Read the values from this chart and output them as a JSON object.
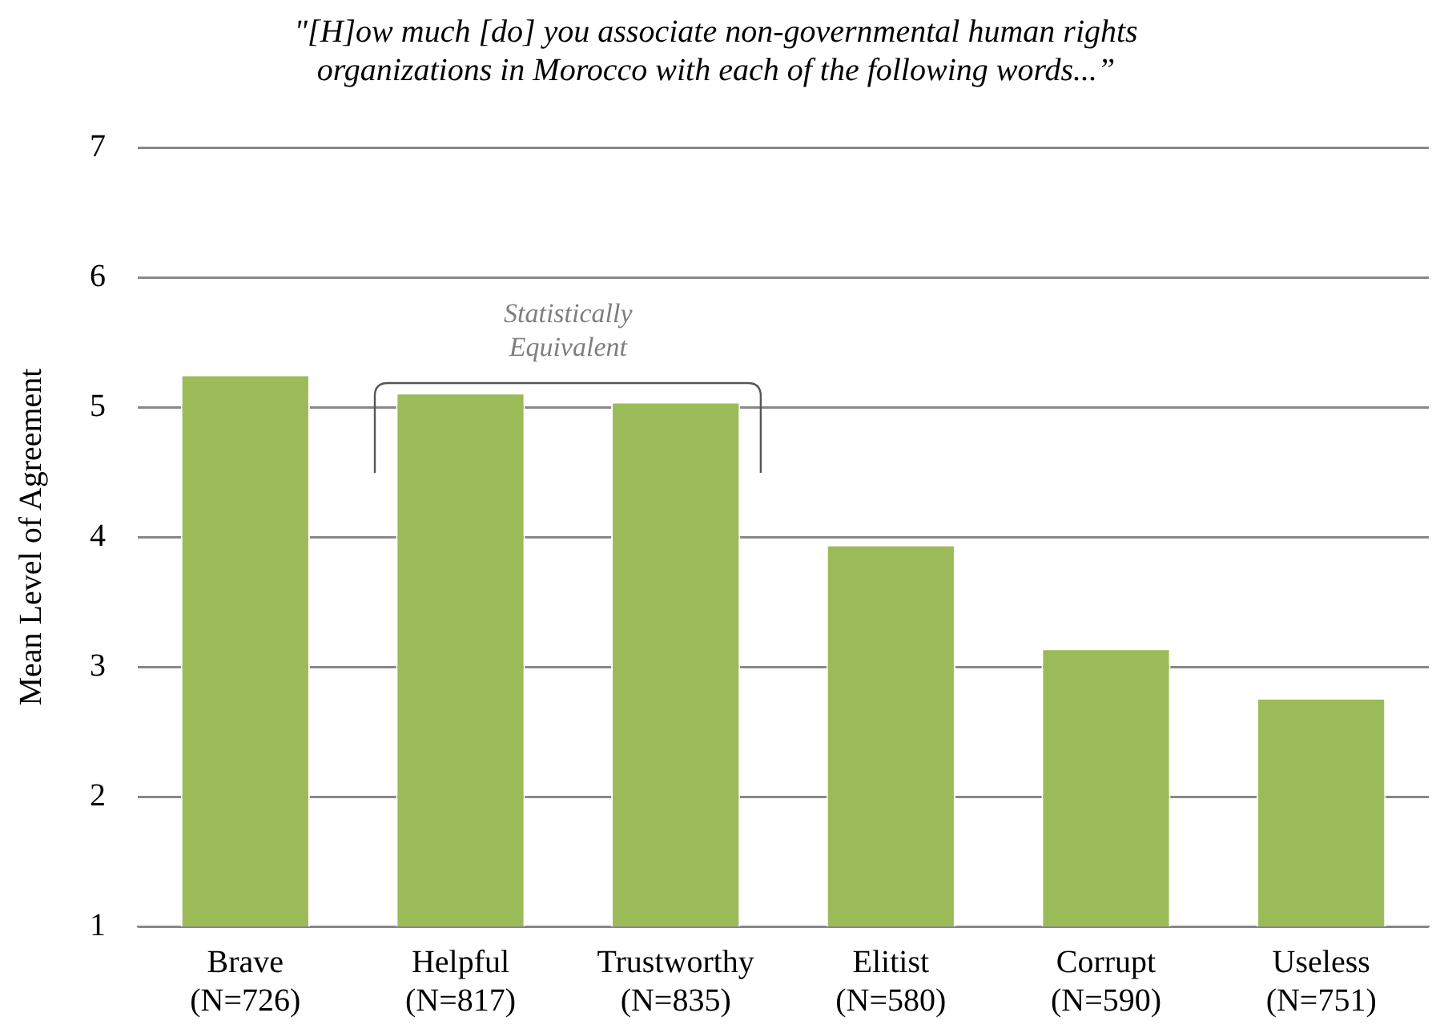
{
  "chart_data": {
    "type": "bar",
    "title": "\"[H]ow much [do] you associate non-governmental human rights organizations in Morocco with each of the following words...”",
    "ylabel": "Mean Level of Agreement",
    "categories": [
      "Brave (N=726)",
      "Helpful (N=817)",
      "Trustworthy (N=835)",
      "Elitist (N=580)",
      "Corrupt (N=590)",
      "Useless (N=751)"
    ],
    "values": [
      5.25,
      5.11,
      5.04,
      3.94,
      3.14,
      2.76
    ],
    "color": "#9bbb59",
    "ylim": [
      1,
      7
    ],
    "yticks": [
      1,
      2,
      3,
      4,
      5,
      6,
      7
    ],
    "grid": "y",
    "annotations": [
      "Statistically Equivalent"
    ]
  }
}
